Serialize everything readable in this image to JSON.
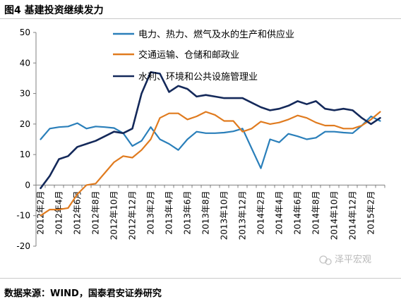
{
  "figure": {
    "title": "图4 基建投资继续发力",
    "source": "数据来源：WIND，国泰君安证券研究",
    "watermark": "泽平宏观"
  },
  "chart_data": {
    "type": "line",
    "title": "",
    "xlabel": "",
    "ylabel": "",
    "ylim": [
      -20,
      50
    ],
    "yticks": [
      -20,
      -10,
      0,
      10,
      20,
      30,
      40,
      50
    ],
    "grid": false,
    "legend_position": "top-right",
    "x_tick_labels": [
      "2012年2月",
      "2012年4月",
      "2012年6月",
      "2012年8月",
      "2012年10月",
      "2012年12月",
      "2013年2月",
      "2013年4月",
      "2013年6月",
      "2013年8月",
      "2013年10月",
      "2013年12月",
      "2014年2月",
      "2014年4月",
      "2014年6月",
      "2014年8月",
      "2014年10月",
      "2014年12月",
      "2015年2月"
    ],
    "x": [
      "2012-02",
      "2012-03",
      "2012-04",
      "2012-05",
      "2012-06",
      "2012-07",
      "2012-08",
      "2012-09",
      "2012-10",
      "2012-11",
      "2012-12",
      "2013-01",
      "2013-02",
      "2013-03",
      "2013-04",
      "2013-05",
      "2013-06",
      "2013-07",
      "2013-08",
      "2013-09",
      "2013-10",
      "2013-11",
      "2013-12",
      "2014-01",
      "2014-02",
      "2014-03",
      "2014-04",
      "2014-05",
      "2014-06",
      "2014-07",
      "2014-08",
      "2014-09",
      "2014-10",
      "2014-11",
      "2014-12",
      "2015-01",
      "2015-02",
      "2015-03"
    ],
    "series": [
      {
        "name": "电力、热力、燃气及水的生产和供应业",
        "color": "#2a7fba",
        "values": [
          15,
          18.5,
          19,
          19.2,
          20.3,
          18.5,
          19.2,
          19,
          18.7,
          17,
          12.8,
          14.5,
          19,
          15,
          13.5,
          11.5,
          15,
          17.5,
          17,
          17,
          17.2,
          17.6,
          18.5,
          12,
          5.5,
          15,
          14,
          16.8,
          16,
          15,
          15.5,
          17.5,
          17.5,
          17.2,
          17,
          19.5,
          22.5,
          21
        ]
      },
      {
        "name": "交通运输、仓储和邮政业",
        "color": "#e07b1f",
        "values": [
          -10,
          -8,
          -8,
          -7.5,
          -3,
          0,
          0.5,
          4,
          7.5,
          9.5,
          9,
          11.5,
          15,
          22,
          23.5,
          23.5,
          21.5,
          22.5,
          24,
          23,
          21,
          21,
          17.5,
          18.5,
          20.8,
          20,
          20.5,
          21.5,
          22.8,
          22,
          20.5,
          19.5,
          19.5,
          18.5,
          18.5,
          19.5,
          21.5,
          24
        ]
      },
      {
        "name": "水利、环境和公共设施管理业",
        "color": "#14295a",
        "values": [
          -1,
          3,
          8.5,
          9.5,
          12.5,
          13.5,
          14.5,
          16,
          17.5,
          17,
          18.5,
          30,
          37,
          36.5,
          30.5,
          32.5,
          31.5,
          29,
          29.5,
          29,
          28.5,
          28.5,
          28.5,
          27,
          25.5,
          24.5,
          25,
          26,
          27.5,
          26.5,
          27.5,
          25,
          24.5,
          25,
          24.5,
          22,
          20,
          22
        ]
      }
    ]
  }
}
